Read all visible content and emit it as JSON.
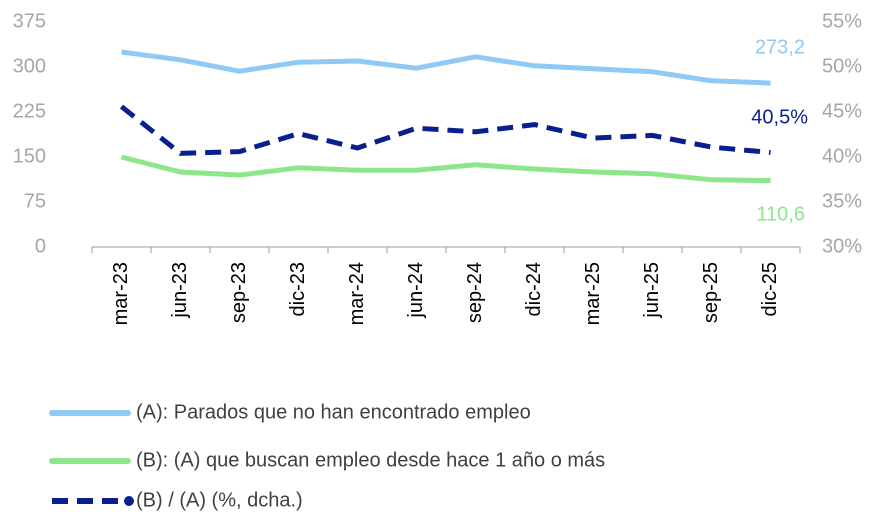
{
  "chart_data": {
    "type": "line",
    "categories": [
      "mar-23",
      "jun-23",
      "sep-23",
      "dic-23",
      "mar-24",
      "jun-24",
      "sep-24",
      "dic-24",
      "mar-25",
      "jun-25",
      "sep-25",
      "dic-25"
    ],
    "series": [
      {
        "name": "(A): Parados que no han encontrado empleo",
        "color": "#8fc9f5",
        "dash": false,
        "values": [
          325,
          312,
          293,
          308,
          310,
          298,
          317,
          302,
          297,
          292,
          277,
          273.2
        ],
        "value_labels": [
          null,
          null,
          null,
          null,
          null,
          null,
          null,
          null,
          null,
          null,
          null,
          "273,2"
        ]
      },
      {
        "name": "(B): (A) que buscan empleo desde hace 1 año o más",
        "color": "#8ee68a",
        "dash": false,
        "values": [
          150,
          125,
          120,
          132,
          128,
          128,
          137,
          130,
          125,
          122,
          112,
          110.6
        ],
        "value_labels": [
          null,
          null,
          null,
          null,
          null,
          null,
          null,
          null,
          null,
          null,
          null,
          "110,6"
        ]
      },
      {
        "name": "(B) / (A) (%, dcha.)",
        "color": "#0a1f8f",
        "dash": true,
        "axis": "y2",
        "values": [
          45.6,
          40.4,
          40.6,
          42.6,
          41.0,
          43.2,
          42.8,
          43.6,
          42.1,
          42.4,
          41.1,
          40.5
        ],
        "value_labels": [
          null,
          null,
          null,
          null,
          null,
          null,
          null,
          null,
          null,
          null,
          null,
          "40,5%"
        ]
      }
    ],
    "ylim": [
      0,
      375
    ],
    "yticks": [
      0,
      75,
      150,
      225,
      300,
      375
    ],
    "y2lim": [
      30,
      55
    ],
    "y2ticks": [
      {
        "value": 30,
        "label": "30%"
      },
      {
        "value": 35,
        "label": "35%"
      },
      {
        "value": 40,
        "label": "40%"
      },
      {
        "value": 45,
        "label": "45%"
      },
      {
        "value": 50,
        "label": "50%"
      },
      {
        "value": 55,
        "label": "55%"
      }
    ],
    "grid": false,
    "legend": "bottom"
  }
}
